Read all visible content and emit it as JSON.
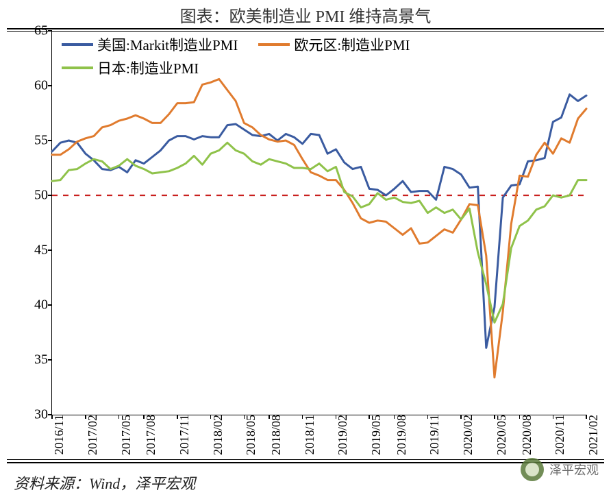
{
  "title": "图表：欧美制造业 PMI 维持高景气",
  "source": "资料来源：Wind，泽平宏观",
  "watermark": "泽平宏观",
  "chart": {
    "type": "line",
    "background_color": "#ffffff",
    "ylim": [
      30,
      65
    ],
    "ytick_step": 5,
    "yticks": [
      30,
      35,
      40,
      45,
      50,
      55,
      60,
      65
    ],
    "x_labels": [
      "2016/11",
      "2017/02",
      "2017/05",
      "2017/08",
      "2017/11",
      "2018/02",
      "2018/05",
      "2018/08",
      "2018/11",
      "2019/02",
      "2019/05",
      "2019/08",
      "2019/11",
      "2020/02",
      "2020/05",
      "2020/08",
      "2020/11",
      "2021/02"
    ],
    "reference_line": {
      "y": 50,
      "color": "#c9201f",
      "dash": "8,8",
      "width": 2.2
    },
    "line_width": 3,
    "legend": {
      "position": "top-left-inside",
      "fontsize": 21,
      "items": [
        {
          "label": "美国:Markit制造业PMI",
          "color": "#3a5ba0"
        },
        {
          "label": "欧元区:制造业PMI",
          "color": "#e07b2e"
        },
        {
          "label": "日本:制造业PMI",
          "color": "#8fc24a"
        }
      ]
    },
    "series": [
      {
        "name": "美国:Markit制造业PMI",
        "color": "#3a5ba0",
        "values": [
          54.0,
          54.8,
          55.0,
          54.8,
          53.8,
          53.2,
          52.4,
          52.3,
          52.6,
          52.1,
          53.2,
          52.9,
          53.5,
          54.1,
          55.0,
          55.4,
          55.4,
          55.1,
          55.4,
          55.3,
          55.3,
          56.4,
          56.5,
          56.0,
          55.5,
          55.4,
          55.6,
          55.0,
          55.6,
          55.3,
          54.7,
          55.6,
          55.5,
          53.8,
          54.2,
          53.0,
          52.4,
          52.6,
          50.6,
          50.5,
          50.0,
          50.6,
          51.3,
          50.3,
          50.4,
          50.4,
          49.6,
          52.6,
          52.4,
          51.9,
          50.7,
          50.8,
          36.1,
          39.8,
          49.8,
          50.9,
          51.0,
          53.1,
          53.2,
          53.4,
          56.7,
          57.1,
          59.2,
          58.6,
          59.1
        ]
      },
      {
        "name": "欧元区:制造业PMI",
        "color": "#e07b2e",
        "values": [
          53.7,
          53.7,
          54.2,
          54.9,
          55.2,
          55.4,
          56.2,
          56.4,
          56.8,
          57.0,
          57.3,
          57.0,
          56.6,
          56.6,
          57.4,
          58.4,
          58.4,
          58.5,
          60.1,
          60.3,
          60.6,
          59.6,
          58.6,
          56.6,
          56.2,
          55.5,
          55.1,
          54.9,
          55.0,
          54.6,
          53.3,
          52.1,
          51.8,
          51.4,
          51.4,
          50.5,
          49.3,
          47.9,
          47.5,
          47.7,
          47.6,
          47.0,
          46.4,
          47.0,
          45.6,
          45.7,
          46.3,
          46.9,
          46.6,
          47.8,
          49.2,
          49.1,
          44.5,
          33.4,
          39.4,
          47.4,
          51.8,
          51.7,
          53.7,
          54.8,
          53.8,
          55.2,
          54.8,
          57.0,
          57.9
        ]
      },
      {
        "name": "日本:制造业PMI",
        "color": "#8fc24a",
        "values": [
          51.3,
          51.4,
          52.3,
          52.4,
          52.9,
          53.3,
          53.1,
          52.4,
          52.7,
          53.3,
          52.7,
          52.4,
          52.0,
          52.1,
          52.2,
          52.5,
          52.9,
          53.6,
          52.8,
          53.8,
          54.1,
          54.8,
          54.1,
          53.8,
          53.1,
          52.8,
          53.3,
          53.1,
          52.9,
          52.5,
          52.5,
          52.4,
          52.9,
          52.2,
          52.6,
          50.3,
          49.9,
          48.9,
          49.2,
          50.2,
          49.6,
          49.8,
          49.4,
          49.3,
          49.5,
          48.4,
          48.9,
          48.4,
          48.7,
          47.8,
          48.8,
          44.8,
          41.9,
          38.4,
          40.1,
          45.2,
          47.2,
          47.7,
          48.7,
          49.0,
          50.0,
          49.8,
          50.0,
          51.4,
          51.4
        ]
      }
    ],
    "x_label_fontsize": 18,
    "y_label_fontsize": 20,
    "title_fontsize": 24
  }
}
